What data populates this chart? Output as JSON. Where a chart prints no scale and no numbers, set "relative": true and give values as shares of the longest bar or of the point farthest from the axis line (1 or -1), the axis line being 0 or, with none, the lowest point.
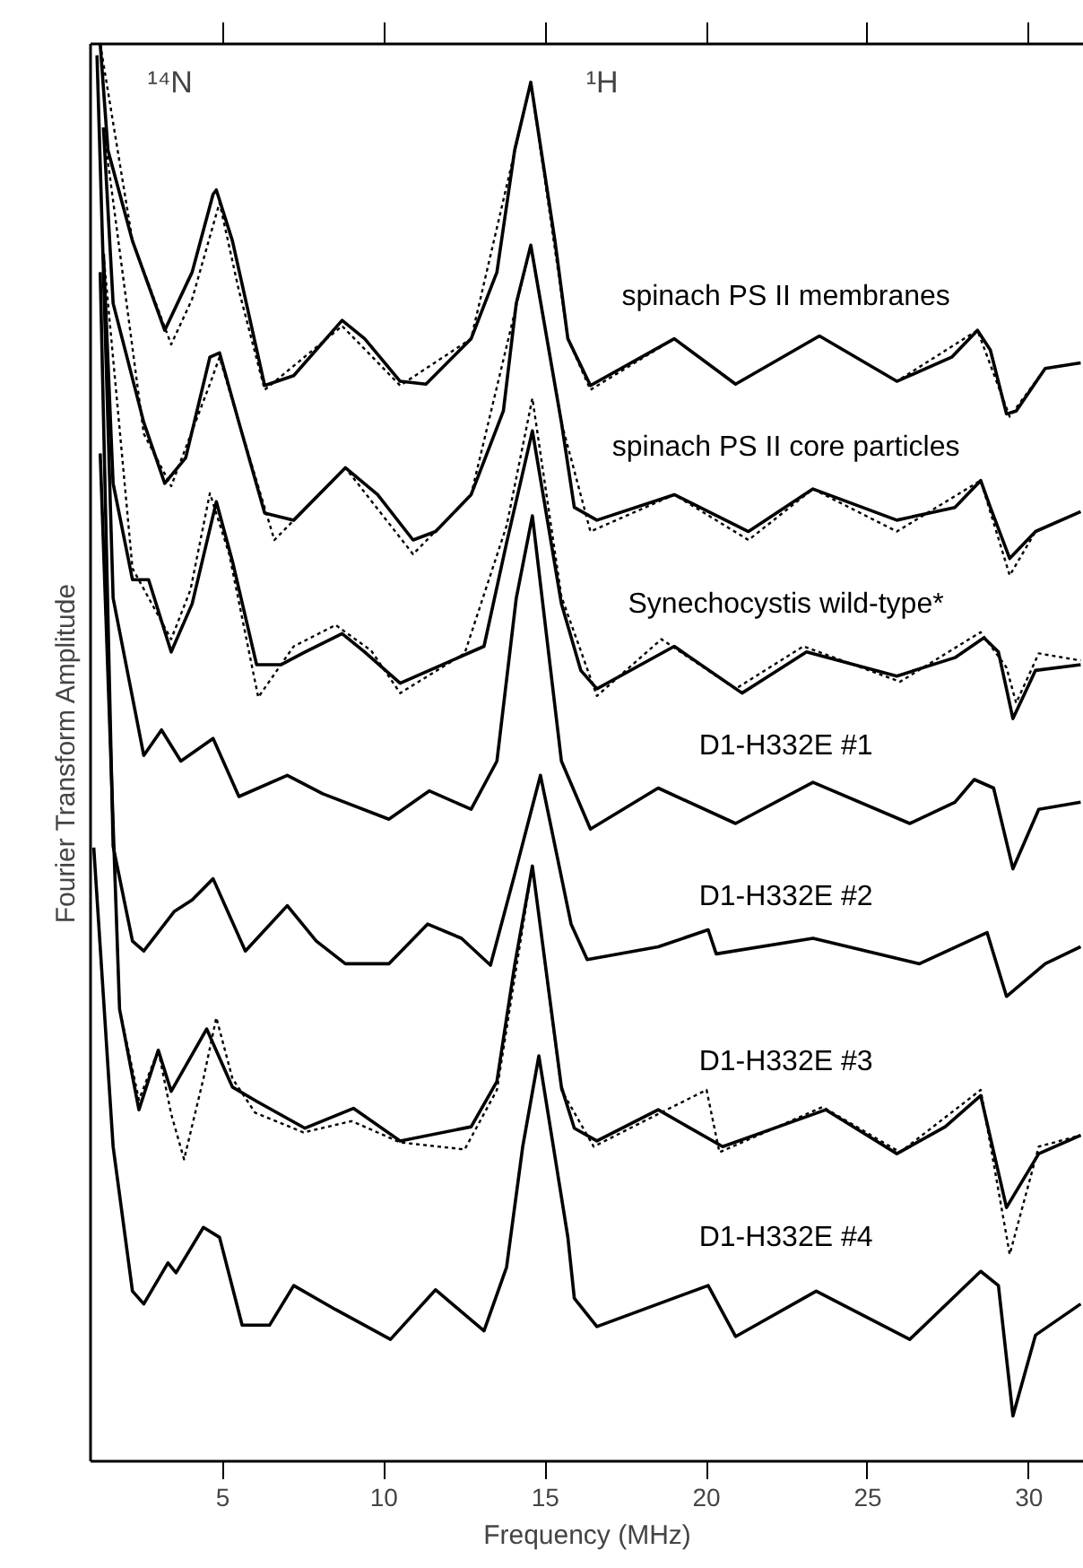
{
  "chart_data": {
    "type": "line",
    "relative": true,
    "xlabel": "Frequency (MHz)",
    "ylabel": "Fourier Transform Amplitude",
    "xlim": [
      0.9,
      31.7
    ],
    "xticks": [
      5,
      10,
      15,
      20,
      25,
      30
    ],
    "tick_labels": "x",
    "grid": false,
    "legend": false,
    "annotations": [
      "¹⁴N",
      "¹H"
    ],
    "series": [
      {
        "name": "spinach PS II membranes",
        "color": "#000000",
        "line_style": "solid",
        "x": [
          1.2,
          1.44,
          2.2,
          3.2,
          4.05,
          4.7,
          4.8,
          5.3,
          6.3,
          7.2,
          8.7,
          9.4,
          10.5,
          11.3,
          12.7,
          13.5,
          14.05,
          14.55,
          15.3,
          15.7,
          16.4,
          19.0,
          20.9,
          23.5,
          25.9,
          27.6,
          28.4,
          28.8,
          29.3,
          29.6,
          30.5,
          31.6
        ],
        "values": [
          1.0,
          0.925,
          0.861,
          0.798,
          0.839,
          0.894,
          0.897,
          0.861,
          0.759,
          0.766,
          0.805,
          0.792,
          0.762,
          0.76,
          0.792,
          0.839,
          0.925,
          0.973,
          0.861,
          0.792,
          0.759,
          0.792,
          0.76,
          0.794,
          0.762,
          0.779,
          0.798,
          0.784,
          0.739,
          0.741,
          0.771,
          0.775
        ]
      },
      {
        "color": "#000000",
        "line_style": "dotted",
        "x": [
          1.2,
          2.2,
          3.4,
          4.05,
          4.9,
          5.5,
          6.3,
          8.7,
          10.5,
          12.7,
          14.55,
          15.7,
          16.4,
          19.0,
          20.9,
          23.5,
          25.9,
          28.4,
          29.4,
          30.5,
          31.6
        ],
        "values": [
          1.0,
          0.861,
          0.788,
          0.82,
          0.888,
          0.826,
          0.756,
          0.801,
          0.759,
          0.792,
          0.973,
          0.792,
          0.756,
          0.792,
          0.76,
          0.794,
          0.762,
          0.798,
          0.737,
          0.771,
          0.775
        ]
      },
      {
        "name": "spinach PS II core particles",
        "color": "#000000",
        "line_style": "solid",
        "x": [
          1.3,
          1.6,
          2.55,
          3.2,
          3.85,
          4.6,
          4.9,
          5.5,
          6.3,
          7.2,
          8.8,
          9.8,
          10.9,
          11.6,
          12.7,
          13.7,
          14.1,
          14.55,
          15.5,
          15.9,
          16.6,
          19.0,
          21.3,
          23.3,
          25.9,
          27.7,
          28.5,
          28.8,
          29.4,
          30.2,
          31.6
        ],
        "values": [
          0.941,
          0.817,
          0.733,
          0.69,
          0.708,
          0.779,
          0.782,
          0.733,
          0.669,
          0.664,
          0.701,
          0.682,
          0.65,
          0.656,
          0.682,
          0.741,
          0.817,
          0.858,
          0.733,
          0.673,
          0.664,
          0.682,
          0.656,
          0.686,
          0.664,
          0.673,
          0.692,
          0.673,
          0.637,
          0.656,
          0.67
        ]
      },
      {
        "color": "#000000",
        "line_style": "dotted",
        "x": [
          1.3,
          2.55,
          3.4,
          4.6,
          4.9,
          5.5,
          6.6,
          8.8,
          10.9,
          12.7,
          14.55,
          15.5,
          16.4,
          19.0,
          21.3,
          23.3,
          25.9,
          28.5,
          29.4,
          30.2,
          31.6
        ],
        "values": [
          0.941,
          0.725,
          0.688,
          0.76,
          0.779,
          0.733,
          0.65,
          0.701,
          0.64,
          0.682,
          0.858,
          0.733,
          0.656,
          0.682,
          0.65,
          0.686,
          0.656,
          0.692,
          0.625,
          0.656,
          0.67
        ]
      },
      {
        "name": "Synechocystis wild-type*",
        "color": "#000000",
        "line_style": "solid",
        "x": [
          1.3,
          1.6,
          2.2,
          2.7,
          3.4,
          4.05,
          4.8,
          5.3,
          6.05,
          6.8,
          7.55,
          8.7,
          9.4,
          10.5,
          11.8,
          13.1,
          13.8,
          14.6,
          15.5,
          16.1,
          16.6,
          19.0,
          21.1,
          23.1,
          25.9,
          27.7,
          28.6,
          29.05,
          29.5,
          30.2,
          31.6
        ],
        "values": [
          0.852,
          0.69,
          0.622,
          0.622,
          0.571,
          0.605,
          0.677,
          0.635,
          0.562,
          0.562,
          0.571,
          0.584,
          0.571,
          0.549,
          0.562,
          0.575,
          0.648,
          0.727,
          0.605,
          0.558,
          0.545,
          0.575,
          0.542,
          0.571,
          0.554,
          0.567,
          0.581,
          0.571,
          0.524,
          0.558,
          0.562
        ]
      },
      {
        "color": "#000000",
        "line_style": "dotted",
        "x": [
          1.3,
          2.2,
          3.4,
          4.0,
          4.6,
          5.2,
          6.1,
          7.2,
          8.5,
          9.6,
          10.5,
          12.5,
          13.8,
          14.6,
          15.5,
          16.6,
          18.6,
          20.9,
          23.0,
          26.0,
          28.5,
          29.3,
          29.6,
          30.3,
          31.6
        ],
        "values": [
          0.852,
          0.63,
          0.58,
          0.615,
          0.683,
          0.64,
          0.539,
          0.575,
          0.59,
          0.572,
          0.542,
          0.57,
          0.66,
          0.75,
          0.61,
          0.54,
          0.58,
          0.545,
          0.575,
          0.55,
          0.585,
          0.56,
          0.535,
          0.57,
          0.565
        ]
      },
      {
        "name": "D1-H332E #1",
        "color": "#000000",
        "line_style": "solid",
        "x": [
          1.1,
          1.6,
          2.55,
          3.1,
          3.7,
          4.7,
          5.5,
          7.0,
          8.1,
          10.15,
          11.4,
          12.7,
          13.5,
          14.1,
          14.6,
          15.5,
          16.4,
          18.5,
          20.9,
          23.3,
          26.3,
          27.7,
          28.3,
          28.9,
          29.5,
          30.3,
          31.6
        ],
        "values": [
          0.992,
          0.609,
          0.498,
          0.516,
          0.494,
          0.51,
          0.469,
          0.484,
          0.471,
          0.453,
          0.473,
          0.46,
          0.494,
          0.609,
          0.667,
          0.494,
          0.446,
          0.475,
          0.45,
          0.479,
          0.45,
          0.465,
          0.481,
          0.475,
          0.418,
          0.46,
          0.465
        ]
      },
      {
        "name": "D1-H332E #2",
        "color": "#000000",
        "line_style": "solid",
        "x": [
          1.2,
          1.6,
          2.2,
          2.55,
          3.5,
          4.05,
          4.7,
          5.7,
          7.0,
          7.9,
          8.8,
          10.15,
          11.35,
          12.4,
          13.3,
          14.05,
          14.85,
          15.8,
          16.3,
          18.5,
          20.05,
          20.3,
          23.3,
          26.6,
          28.7,
          29.3,
          30.5,
          31.6
        ],
        "values": [
          0.839,
          0.434,
          0.367,
          0.36,
          0.388,
          0.396,
          0.411,
          0.36,
          0.392,
          0.367,
          0.351,
          0.351,
          0.379,
          0.369,
          0.35,
          0.414,
          0.484,
          0.379,
          0.354,
          0.363,
          0.375,
          0.358,
          0.369,
          0.351,
          0.373,
          0.328,
          0.351,
          0.363
        ]
      },
      {
        "name": "D1-H332E #3",
        "color": "#000000",
        "line_style": "solid",
        "x": [
          1.2,
          1.8,
          2.4,
          3.0,
          3.4,
          4.5,
          5.3,
          6.05,
          7.55,
          9.05,
          10.5,
          12.7,
          13.5,
          14.05,
          14.6,
          15.5,
          15.9,
          16.6,
          18.5,
          20.5,
          23.7,
          25.9,
          27.4,
          28.5,
          29.3,
          30.3,
          31.6
        ],
        "values": [
          0.711,
          0.319,
          0.248,
          0.29,
          0.261,
          0.305,
          0.264,
          0.254,
          0.235,
          0.249,
          0.226,
          0.236,
          0.268,
          0.35,
          0.42,
          0.264,
          0.235,
          0.226,
          0.248,
          0.222,
          0.248,
          0.217,
          0.236,
          0.258,
          0.179,
          0.217,
          0.23
        ]
      },
      {
        "color": "#000000",
        "line_style": "dotted",
        "x": [
          1.2,
          1.8,
          2.4,
          3.0,
          3.4,
          3.8,
          4.4,
          4.8,
          5.3,
          6.0,
          7.5,
          9.0,
          10.5,
          12.5,
          13.5,
          14.6,
          15.5,
          16.5,
          18.5,
          20.0,
          20.4,
          23.6,
          26.0,
          28.5,
          29.4,
          30.3,
          31.6
        ],
        "values": [
          0.711,
          0.319,
          0.255,
          0.29,
          0.245,
          0.213,
          0.27,
          0.313,
          0.27,
          0.246,
          0.232,
          0.24,
          0.225,
          0.22,
          0.262,
          0.42,
          0.262,
          0.222,
          0.245,
          0.262,
          0.218,
          0.25,
          0.218,
          0.262,
          0.146,
          0.222,
          0.23
        ]
      },
      {
        "name": "D1-H332E #4",
        "color": "#000000",
        "line_style": "solid",
        "x": [
          1.0,
          1.6,
          2.2,
          2.55,
          3.3,
          3.55,
          4.4,
          4.9,
          5.6,
          6.45,
          7.2,
          8.5,
          10.2,
          11.6,
          13.1,
          13.8,
          14.3,
          14.8,
          15.7,
          15.9,
          16.6,
          20.05,
          20.9,
          23.4,
          26.3,
          28.5,
          29.05,
          29.5,
          30.2,
          31.6
        ],
        "values": [
          0.433,
          0.222,
          0.12,
          0.111,
          0.14,
          0.133,
          0.165,
          0.158,
          0.096,
          0.096,
          0.124,
          0.107,
          0.086,
          0.121,
          0.092,
          0.137,
          0.222,
          0.286,
          0.158,
          0.115,
          0.095,
          0.124,
          0.088,
          0.12,
          0.086,
          0.134,
          0.124,
          0.032,
          0.089,
          0.111
        ]
      }
    ]
  }
}
